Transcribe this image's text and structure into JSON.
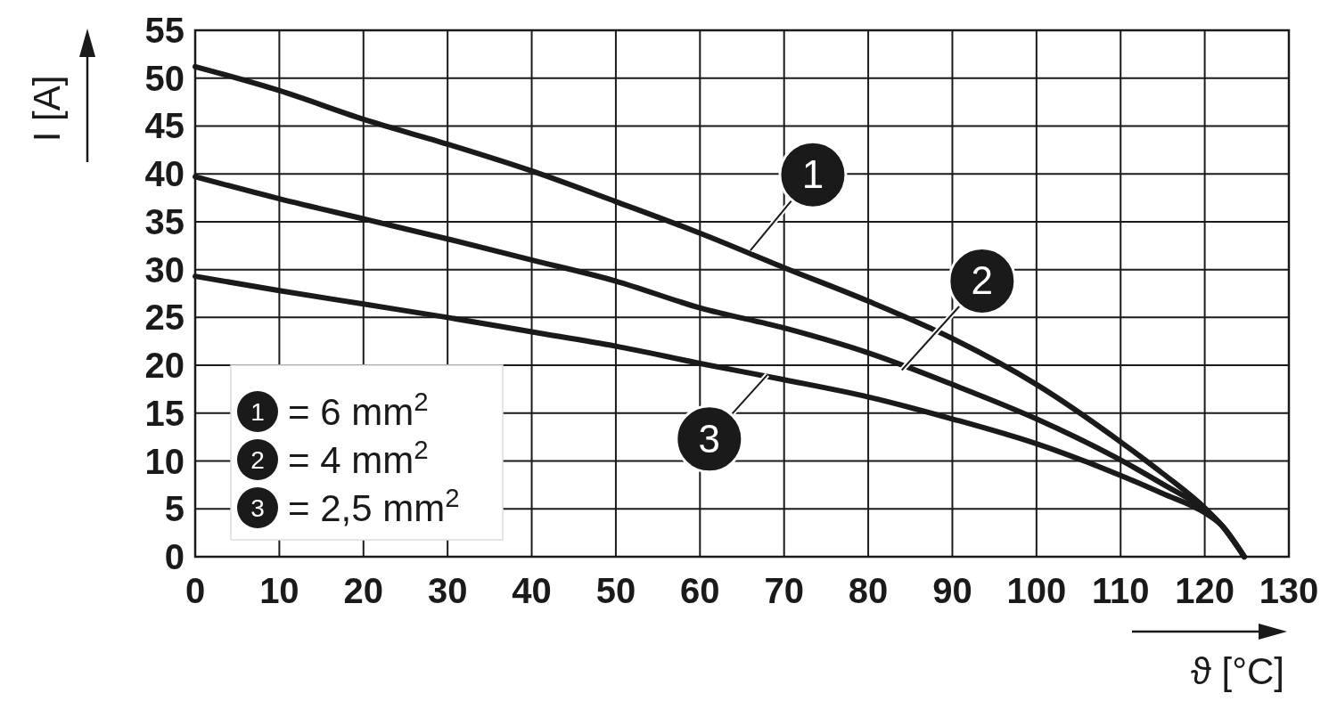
{
  "chart_data": {
    "type": "line",
    "xlabel": "ϑ [°C]",
    "ylabel": "I [A]",
    "xlim": [
      0,
      130
    ],
    "ylim": [
      0,
      55
    ],
    "xticks": [
      0,
      10,
      20,
      30,
      40,
      50,
      60,
      70,
      80,
      90,
      100,
      110,
      120,
      130
    ],
    "yticks": [
      0,
      5,
      10,
      15,
      20,
      25,
      30,
      35,
      40,
      45,
      50,
      55
    ],
    "grid": true,
    "legend": "bottom left",
    "marker": "none",
    "line_style": "solid",
    "x": [
      0,
      10,
      20,
      30,
      40,
      50,
      60,
      70,
      80,
      90,
      100,
      110,
      115,
      120,
      122,
      124.7
    ],
    "series": [
      {
        "name": "= 6 mm$^{2}$",
        "color": "#1a1a1a",
        "values": [
          51.2,
          48.7,
          45.7,
          43.1,
          40.3,
          37.1,
          33.8,
          30.2,
          26.7,
          22.8,
          18.0,
          12.0,
          8.7,
          5.1,
          3.3,
          0
        ]
      },
      {
        "name": "= 4 mm$^{2}$",
        "color": "#1a1a1a",
        "values": [
          39.7,
          37.4,
          35.3,
          33.2,
          31.0,
          28.8,
          26.0,
          23.9,
          21.3,
          18.0,
          14.4,
          10.1,
          7.6,
          4.9,
          3.3,
          0
        ]
      },
      {
        "name": "= 2,5 mm$^{2}$",
        "color": "#1a1a1a",
        "values": [
          29.3,
          27.8,
          26.4,
          25.0,
          23.5,
          22.0,
          20.2,
          18.5,
          16.7,
          14.4,
          11.8,
          8.5,
          6.6,
          4.6,
          3.3,
          0
        ]
      }
    ],
    "annotations": [
      {
        "text": "1",
        "x": 66,
        "y": 32
      },
      {
        "text": "2",
        "x": 84,
        "y": 19.5
      },
      {
        "text": "3",
        "x": 68,
        "y": 19
      }
    ]
  }
}
